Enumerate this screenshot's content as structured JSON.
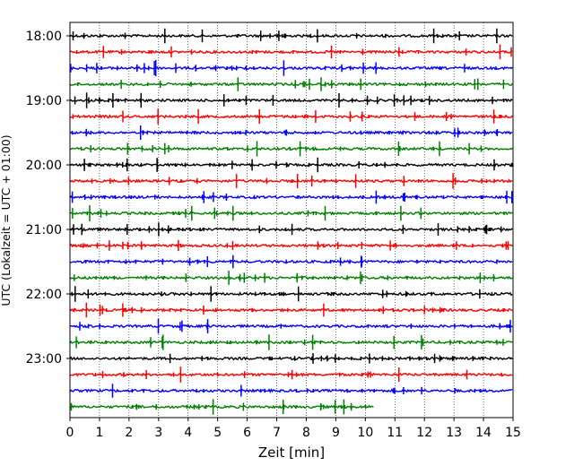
{
  "chart_data": {
    "type": "line",
    "xlabel": "Zeit  [min]",
    "ylabel": "UTC (Lokalzeit = UTC + 01:00)",
    "xlim": [
      0,
      15
    ],
    "x_ticks": [
      "0",
      "1",
      "2",
      "3",
      "4",
      "5",
      "6",
      "7",
      "8",
      "9",
      "10",
      "11",
      "12",
      "13",
      "14",
      "15"
    ],
    "y_ticks": [
      "18:00",
      "19:00",
      "20:00",
      "21:00",
      "22:00",
      "23:00"
    ],
    "grid": "vertical dotted at each minute",
    "trace_interval_min": 15,
    "color_cycle": [
      "#000000",
      "#ff0000",
      "#0000ff",
      "#008000"
    ],
    "traces": [
      {
        "start": "18:00",
        "color": "#000000",
        "end_min": 15
      },
      {
        "start": "18:15",
        "color": "#ff0000",
        "end_min": 15
      },
      {
        "start": "18:30",
        "color": "#0000ff",
        "end_min": 15
      },
      {
        "start": "18:45",
        "color": "#008000",
        "end_min": 15
      },
      {
        "start": "19:00",
        "color": "#000000",
        "end_min": 15
      },
      {
        "start": "19:15",
        "color": "#ff0000",
        "end_min": 15
      },
      {
        "start": "19:30",
        "color": "#0000ff",
        "end_min": 15
      },
      {
        "start": "19:45",
        "color": "#008000",
        "end_min": 15
      },
      {
        "start": "20:00",
        "color": "#000000",
        "end_min": 15
      },
      {
        "start": "20:15",
        "color": "#ff0000",
        "end_min": 15
      },
      {
        "start": "20:30",
        "color": "#0000ff",
        "end_min": 15
      },
      {
        "start": "20:45",
        "color": "#008000",
        "end_min": 15
      },
      {
        "start": "21:00",
        "color": "#000000",
        "end_min": 15
      },
      {
        "start": "21:15",
        "color": "#ff0000",
        "end_min": 15
      },
      {
        "start": "21:30",
        "color": "#0000ff",
        "end_min": 15
      },
      {
        "start": "21:45",
        "color": "#008000",
        "end_min": 15
      },
      {
        "start": "22:00",
        "color": "#000000",
        "end_min": 15
      },
      {
        "start": "22:15",
        "color": "#ff0000",
        "end_min": 15
      },
      {
        "start": "22:30",
        "color": "#0000ff",
        "end_min": 15
      },
      {
        "start": "22:45",
        "color": "#008000",
        "end_min": 15
      },
      {
        "start": "23:00",
        "color": "#000000",
        "end_min": 15
      },
      {
        "start": "23:15",
        "color": "#ff0000",
        "end_min": 15
      },
      {
        "start": "23:30",
        "color": "#0000ff",
        "end_min": 15
      },
      {
        "start": "23:45",
        "color": "#008000",
        "end_min": 10.3
      }
    ]
  }
}
